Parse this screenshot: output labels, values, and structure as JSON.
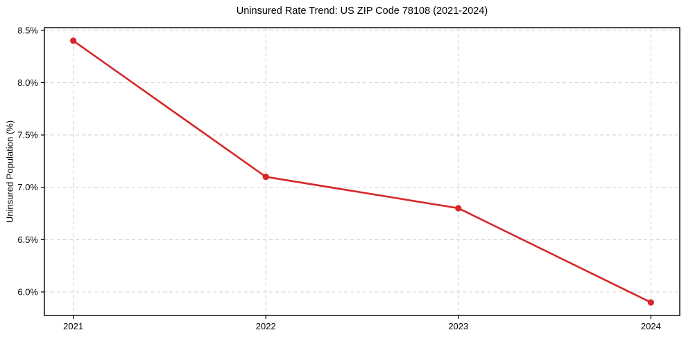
{
  "chart_data": {
    "type": "line",
    "title": "Uninsured Rate Trend: US ZIP Code 78108 (2021-2024)",
    "xlabel": "",
    "ylabel": "Uninsured Population (%)",
    "x": [
      2021,
      2022,
      2023,
      2024
    ],
    "x_tick_labels": [
      "2021",
      "2022",
      "2023",
      "2024"
    ],
    "series": [
      {
        "name": "Uninsured Rate",
        "values": [
          8.4,
          7.1,
          6.8,
          5.9
        ]
      }
    ],
    "y_ticks": [
      6.0,
      6.5,
      7.0,
      7.5,
      8.0,
      8.5
    ],
    "y_tick_labels": [
      "6.0%",
      "6.5%",
      "7.0%",
      "7.5%",
      "8.0%",
      "8.5%"
    ],
    "xlim": [
      2020.85,
      2024.15
    ],
    "ylim": [
      5.775,
      8.525
    ],
    "grid": true,
    "grid_style": "dashed",
    "legend_position": "none",
    "line_color": "#d62728",
    "marker": "circle",
    "grid_color": "#cfcfcf",
    "spine_color": "#000000",
    "background_color": "#ffffff"
  }
}
